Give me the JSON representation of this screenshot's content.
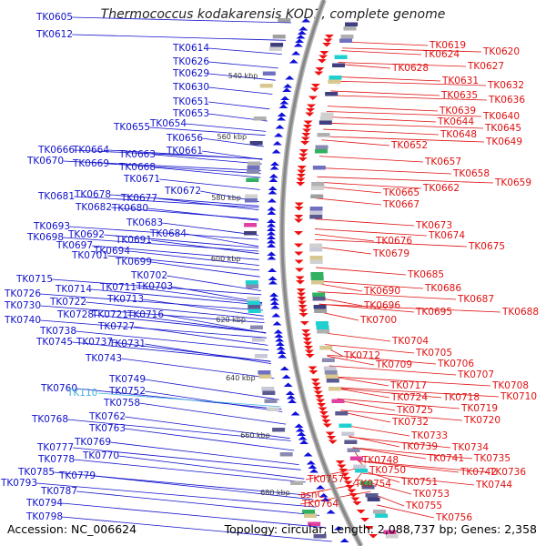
{
  "title": "Thermococcus kodakarensis KOD1, complete genome",
  "footer": {
    "accession": "Accession: NC_006624",
    "summary": "Topology: circular; Length: 2,088,737 bp; Genes: 2,358"
  },
  "colors": {
    "left_labels": "#1010cc",
    "right_labels": "#e01010",
    "special_label": "#40b0e0",
    "backbone": "#888888",
    "tick": "#22aa22"
  },
  "scale_labels": [
    "540 kbp",
    "560 kbp",
    "580 kbp",
    "600 kbp",
    "620 kbp",
    "640 kbp",
    "660 kbp",
    "680 kbp"
  ],
  "left_labels": [
    "TK0605",
    "TK0612",
    "TK0614",
    "TK0626",
    "TK0629",
    "TK0630",
    "TK0651",
    "TK0653",
    "TK0654",
    "TK0655",
    "TK0656",
    "TK0661",
    "TK0666",
    "TK0664",
    "TK0663",
    "TK0670",
    "TK0669",
    "TK0668",
    "TK0671",
    "TK0672",
    "TK0681",
    "TK0678",
    "TK0677",
    "TK0682",
    "TK0680",
    "TK0683",
    "TK0684",
    "TK0693",
    "TK0692",
    "TK0691",
    "TK0698",
    "TK0697",
    "TK0694",
    "TK0701",
    "TK0699",
    "TK0702",
    "TK0715",
    "TK0714",
    "TK0711",
    "TK0703",
    "TK0726",
    "TK0713",
    "TK0730",
    "TK0722",
    "TK0740",
    "TK0728",
    "TK0721",
    "TK0716",
    "TK0727",
    "TK0738",
    "TK0745",
    "TK0737",
    "TK0731",
    "TK0743",
    "TK0749",
    "TK0752",
    "TK0760",
    "TK0758",
    "TK0768",
    "TK0762",
    "TK0763",
    "TK0777",
    "TK0769",
    "TK0778",
    "TK0770",
    "TK0785",
    "TK0779",
    "TK0793",
    "TK0787",
    "TK0794",
    "TK0798"
  ],
  "special_labels": [
    "TK110"
  ],
  "right_labels": [
    "TK0619",
    "TK0620",
    "TK0624",
    "TK0627",
    "TK0628",
    "TK0631",
    "TK0632",
    "TK0635",
    "TK0636",
    "TK0639",
    "TK0640",
    "TK0644",
    "TK0645",
    "TK0648",
    "TK0649",
    "TK0652",
    "TK0657",
    "TK0658",
    "TK0659",
    "TK0662",
    "TK0665",
    "TK0667",
    "TK0673",
    "TK0674",
    "TK0676",
    "TK0675",
    "TK0679",
    "TK0685",
    "TK0686",
    "TK0687",
    "TK0690",
    "TK0688",
    "TK0696",
    "TK0695",
    "TK0700",
    "TK0704",
    "TK0705",
    "TK0712",
    "TK0709",
    "TK0706",
    "TK0707",
    "TK0708",
    "TK0717",
    "TK0710",
    "TK0724",
    "TK0718",
    "TK0719",
    "TK0725",
    "TK0720",
    "TK0732",
    "TK0733",
    "TK0739",
    "TK0734",
    "TK0741",
    "TK0735",
    "TK0748",
    "TK0742",
    "TK0736",
    "TK0750",
    "TK0744",
    "TK0757",
    "TK0754",
    "TK0751",
    "TK0753",
    "asnC",
    "TK0755",
    "TK0764",
    "TK0756"
  ]
}
